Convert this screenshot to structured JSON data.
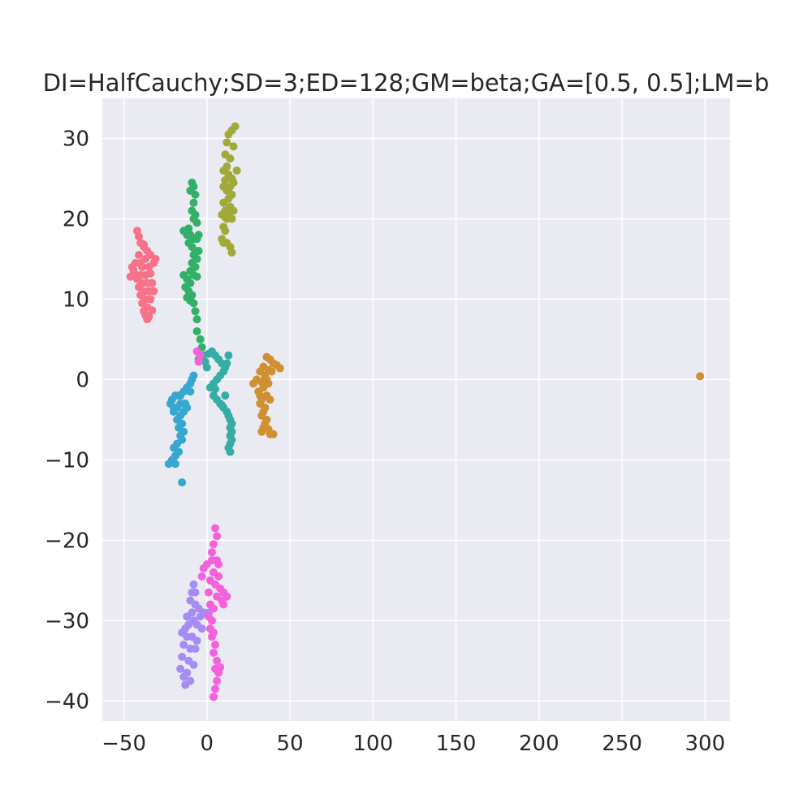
{
  "chart_data": {
    "type": "scatter",
    "title": "DI=HalfCauchy;SD=3;ED=128;GM=beta;GA=[0.5, 0.5];LM=b",
    "xlabel": "",
    "ylabel": "",
    "xlim": [
      -63,
      315
    ],
    "ylim": [
      -42.5,
      35
    ],
    "grid": true,
    "legend": "none",
    "x_ticks": [
      -50,
      0,
      50,
      100,
      150,
      200,
      250,
      300
    ],
    "y_ticks": [
      -40,
      -30,
      -20,
      -10,
      0,
      10,
      20,
      30
    ],
    "x_tick_labels": [
      "−50",
      "0",
      "50",
      "100",
      "150",
      "200",
      "250",
      "300"
    ],
    "y_tick_labels": [
      "−40",
      "−30",
      "−20",
      "−10",
      "0",
      "10",
      "20",
      "30"
    ],
    "colors": {
      "background": "#eaeaf2",
      "grid": "#ffffff",
      "text": "#262626"
    },
    "series": [
      {
        "color": "#f77189",
        "points": [
          [
            -42,
            18.5
          ],
          [
            -41,
            17.8
          ],
          [
            -40,
            17
          ],
          [
            -38,
            16.5
          ],
          [
            -36,
            16
          ],
          [
            -41,
            15.5
          ],
          [
            -37,
            15
          ],
          [
            -43,
            14.5
          ],
          [
            -39,
            14
          ],
          [
            -35,
            14
          ],
          [
            -45,
            14
          ],
          [
            -44,
            13.5
          ],
          [
            -40,
            13
          ],
          [
            -37,
            13
          ],
          [
            -34,
            13.2
          ],
          [
            -32,
            14.5
          ],
          [
            -31,
            15
          ],
          [
            -42,
            12.5
          ],
          [
            -39,
            12
          ],
          [
            -36,
            12
          ],
          [
            -33,
            12
          ],
          [
            -46,
            12.8
          ],
          [
            -41,
            11.5
          ],
          [
            -38,
            11
          ],
          [
            -35,
            11
          ],
          [
            -40,
            10.5
          ],
          [
            -37,
            10
          ],
          [
            -34,
            10
          ],
          [
            -39,
            9.5
          ],
          [
            -36,
            9
          ],
          [
            -38,
            8.5
          ],
          [
            -37,
            8
          ],
          [
            -35,
            7.8
          ],
          [
            -36,
            7.5
          ],
          [
            -33,
            8.6
          ],
          [
            -32,
            11
          ],
          [
            -34,
            15.5
          ],
          [
            -38,
            16.8
          ],
          [
            -43,
            13
          ],
          [
            -40,
            14.5
          ]
        ]
      },
      {
        "color": "#33b068",
        "points": [
          [
            -9,
            24.5
          ],
          [
            -8,
            24
          ],
          [
            -10,
            23.5
          ],
          [
            -7,
            23
          ],
          [
            -8,
            22
          ],
          [
            -9,
            21
          ],
          [
            -7,
            20.5
          ],
          [
            -8,
            20
          ],
          [
            -6,
            19.5
          ],
          [
            -14,
            18.5
          ],
          [
            -12,
            18
          ],
          [
            -10,
            18
          ],
          [
            -8,
            17.5
          ],
          [
            -6,
            17.5
          ],
          [
            -11,
            17
          ],
          [
            -9,
            16.5
          ],
          [
            -7,
            16
          ],
          [
            -5,
            16
          ],
          [
            -8,
            15.5
          ],
          [
            -6,
            15
          ],
          [
            -9,
            14.5
          ],
          [
            -7,
            14
          ],
          [
            -10,
            13.5
          ],
          [
            -8,
            13
          ],
          [
            -6,
            12.8
          ],
          [
            -14,
            13
          ],
          [
            -12,
            12.5
          ],
          [
            -10,
            12
          ],
          [
            -13,
            11.5
          ],
          [
            -11,
            11
          ],
          [
            -9,
            10.5
          ],
          [
            -12,
            10.2
          ],
          [
            -10,
            9.8
          ],
          [
            -8,
            9.5
          ],
          [
            -7,
            8.5
          ],
          [
            -6,
            7.5
          ],
          [
            -6,
            6
          ],
          [
            -4,
            5
          ],
          [
            -3,
            4
          ],
          [
            -4,
            3
          ],
          [
            -5,
            2.5
          ],
          [
            -11,
            18.8
          ],
          [
            -5,
            18
          ]
        ]
      },
      {
        "color": "#a1a938",
        "points": [
          [
            17,
            31.5
          ],
          [
            15,
            31
          ],
          [
            13,
            30.5
          ],
          [
            12,
            29.5
          ],
          [
            16,
            29
          ],
          [
            11,
            28
          ],
          [
            14,
            27.5
          ],
          [
            18,
            26
          ],
          [
            12,
            26.5
          ],
          [
            10,
            26
          ],
          [
            13,
            25.5
          ],
          [
            15,
            25
          ],
          [
            11,
            24.8
          ],
          [
            14,
            24
          ],
          [
            10,
            24
          ],
          [
            12,
            23.5
          ],
          [
            15,
            23
          ],
          [
            13,
            22.5
          ],
          [
            10,
            22
          ],
          [
            14,
            21.5
          ],
          [
            11,
            21
          ],
          [
            16,
            21
          ],
          [
            13,
            20.5
          ],
          [
            9,
            20.5
          ],
          [
            12,
            20
          ],
          [
            15,
            20
          ],
          [
            10,
            19
          ],
          [
            11,
            18.5
          ],
          [
            9,
            17.5
          ],
          [
            12,
            17
          ],
          [
            10,
            17
          ],
          [
            14,
            16.5
          ],
          [
            15,
            15.8
          ],
          [
            11,
            20.2
          ],
          [
            13,
            23.8
          ],
          [
            16,
            24.5
          ]
        ]
      },
      {
        "color": "#ce9032",
        "points": [
          [
            36,
            2.8
          ],
          [
            38,
            2.5
          ],
          [
            40,
            2
          ],
          [
            42,
            1.8
          ],
          [
            44,
            1.4
          ],
          [
            34,
            1.6
          ],
          [
            37,
            1.2
          ],
          [
            32,
            1
          ],
          [
            35,
            0.5
          ],
          [
            30,
            0
          ],
          [
            33,
            -0.3
          ],
          [
            37,
            -0.5
          ],
          [
            28,
            -0.5
          ],
          [
            34,
            -1
          ],
          [
            31,
            -1.5
          ],
          [
            36,
            -2
          ],
          [
            33,
            -2.5
          ],
          [
            38,
            -2.5
          ],
          [
            32,
            -3
          ],
          [
            35,
            -3.5
          ],
          [
            34,
            -4
          ],
          [
            33,
            -4.5
          ],
          [
            36,
            -5
          ],
          [
            35,
            -5.5
          ],
          [
            34,
            -6
          ],
          [
            37,
            -6.2
          ],
          [
            33,
            -6.5
          ],
          [
            38,
            -6.8
          ],
          [
            40,
            -6.8
          ],
          [
            36,
            0
          ],
          [
            39,
            1
          ],
          [
            32,
            -2
          ],
          [
            297,
            0.4
          ]
        ]
      },
      {
        "color": "#36ada4",
        "points": [
          [
            -2,
            3
          ],
          [
            1,
            3.2
          ],
          [
            3,
            3.5
          ],
          [
            5,
            3
          ],
          [
            7,
            2.5
          ],
          [
            9,
            2
          ],
          [
            11,
            1.5
          ],
          [
            13,
            3
          ],
          [
            12,
            2
          ],
          [
            10,
            1
          ],
          [
            8,
            0.5
          ],
          [
            6,
            0
          ],
          [
            4,
            -0.5
          ],
          [
            2,
            -1
          ],
          [
            4,
            -2
          ],
          [
            6,
            -2.5
          ],
          [
            8,
            -3
          ],
          [
            10,
            -3.5
          ],
          [
            12,
            -4
          ],
          [
            13,
            -4.5
          ],
          [
            14,
            -5
          ],
          [
            15,
            -5.5
          ],
          [
            14,
            -6
          ],
          [
            15,
            -6.5
          ],
          [
            14,
            -7
          ],
          [
            15,
            -7.5
          ],
          [
            14,
            -8
          ],
          [
            13,
            -8.5
          ],
          [
            14,
            -9
          ],
          [
            9,
            -3.2
          ],
          [
            5,
            -1.2
          ],
          [
            -1,
            2.2
          ],
          [
            0,
            1.5
          ],
          [
            11,
            -2
          ]
        ]
      },
      {
        "color": "#38a7d0",
        "points": [
          [
            -8,
            0.5
          ],
          [
            -9,
            0
          ],
          [
            -10,
            -0.5
          ],
          [
            -12,
            -1
          ],
          [
            -14,
            -1.5
          ],
          [
            -16,
            -2
          ],
          [
            -19,
            -2
          ],
          [
            -21,
            -2.5
          ],
          [
            -22,
            -3
          ],
          [
            -20,
            -3.5
          ],
          [
            -18,
            -3.5
          ],
          [
            -16,
            -3
          ],
          [
            -14,
            -3
          ],
          [
            -12,
            -3.5
          ],
          [
            -14,
            -4
          ],
          [
            -16,
            -4.5
          ],
          [
            -18,
            -5
          ],
          [
            -15,
            -5.5
          ],
          [
            -17,
            -6
          ],
          [
            -14,
            -6.5
          ],
          [
            -16,
            -7
          ],
          [
            -15,
            -7.5
          ],
          [
            -18,
            -8
          ],
          [
            -20,
            -8.5
          ],
          [
            -17,
            -9
          ],
          [
            -19,
            -9.5
          ],
          [
            -21,
            -10
          ],
          [
            -23,
            -10.5
          ],
          [
            -19,
            -10.5
          ],
          [
            -15,
            -12.8
          ],
          [
            -13,
            -3
          ],
          [
            -17,
            -2
          ],
          [
            -10,
            -1.5
          ],
          [
            -20,
            -4
          ]
        ]
      },
      {
        "color": "#a48cf4",
        "points": [
          [
            -8,
            -25.5
          ],
          [
            -9,
            -26.5
          ],
          [
            -10,
            -27.5
          ],
          [
            -7,
            -28
          ],
          [
            -5,
            -28.5
          ],
          [
            -2,
            -29
          ],
          [
            1,
            -29
          ],
          [
            -4,
            -29.5
          ],
          [
            -8,
            -30
          ],
          [
            -11,
            -30.5
          ],
          [
            -13,
            -31
          ],
          [
            -15,
            -31.5
          ],
          [
            -12,
            -32
          ],
          [
            -9,
            -32
          ],
          [
            -6,
            -32.5
          ],
          [
            -14,
            -33
          ],
          [
            -10,
            -33.5
          ],
          [
            -7,
            -33.5
          ],
          [
            -15,
            -34.5
          ],
          [
            -11,
            -35
          ],
          [
            -8,
            -35.5
          ],
          [
            -16,
            -36
          ],
          [
            -12,
            -36.5
          ],
          [
            -14,
            -37
          ],
          [
            -10,
            -37.5
          ],
          [
            -13,
            -38
          ],
          [
            -9,
            -29
          ],
          [
            -6,
            -30.5
          ],
          [
            -3,
            -31
          ],
          [
            -12,
            -29.5
          ],
          [
            -7,
            -26.5
          ]
        ]
      },
      {
        "color": "#f561dd",
        "points": [
          [
            -6,
            3.5
          ],
          [
            -4,
            3
          ],
          [
            -5,
            2.2
          ],
          [
            5,
            -18.5
          ],
          [
            6,
            -19.5
          ],
          [
            4,
            -20.5
          ],
          [
            3,
            -21.5
          ],
          [
            6,
            -22.5
          ],
          [
            3,
            -22.5
          ],
          [
            0,
            -23
          ],
          [
            -2,
            -23.5
          ],
          [
            -3,
            -24.5
          ],
          [
            4,
            -24
          ],
          [
            7,
            -24.5
          ],
          [
            2,
            -25
          ],
          [
            5,
            -25.5
          ],
          [
            8,
            -26
          ],
          [
            1,
            -26.5
          ],
          [
            6,
            -27
          ],
          [
            9,
            -27.5
          ],
          [
            12,
            -27
          ],
          [
            10,
            -26.5
          ],
          [
            2,
            -28
          ],
          [
            4,
            -28.5
          ],
          [
            1,
            -29.5
          ],
          [
            3,
            -30
          ],
          [
            2,
            -31
          ],
          [
            4,
            -31.5
          ],
          [
            3,
            -32
          ],
          [
            5,
            -33
          ],
          [
            4,
            -34
          ],
          [
            6,
            -35
          ],
          [
            5,
            -36
          ],
          [
            7,
            -36.5
          ],
          [
            6,
            -37.5
          ],
          [
            5,
            -38.5
          ],
          [
            4,
            -39.5
          ],
          [
            8,
            -35.8
          ],
          [
            10,
            -28
          ],
          [
            7,
            -23
          ]
        ]
      }
    ]
  }
}
